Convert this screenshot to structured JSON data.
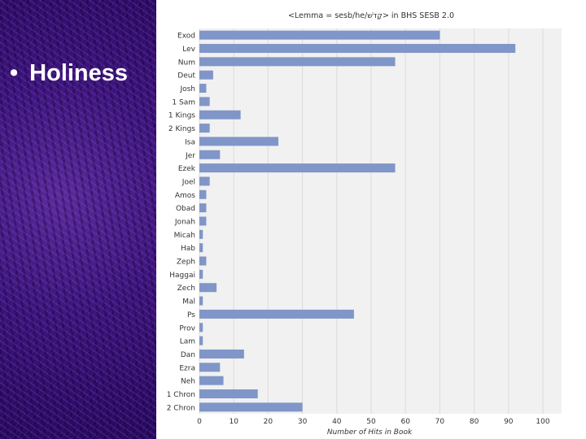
{
  "slide": {
    "bullet": "•",
    "heading": "Holiness"
  },
  "colors": {
    "bar": "#8096c8",
    "plot_bg": "#f1f1f1",
    "grid": "#dcdcdc",
    "left_panel": "#3b147a"
  },
  "chart_data": {
    "type": "bar",
    "orientation": "horizontal",
    "title": "<Lemma = sesb/he/קָדֹשׁ> in BHS SESB 2.0",
    "xlabel": "Number of Hits in Book",
    "ylabel": "",
    "xlim": [
      0,
      100
    ],
    "xticks": [
      0,
      10,
      20,
      30,
      40,
      50,
      60,
      70,
      80,
      90,
      100
    ],
    "grid": true,
    "categories": [
      "Exod",
      "Lev",
      "Num",
      "Deut",
      "Josh",
      "1 Sam",
      "1 Kings",
      "2 Kings",
      "Isa",
      "Jer",
      "Ezek",
      "Joel",
      "Amos",
      "Obad",
      "Jonah",
      "Micah",
      "Hab",
      "Zeph",
      "Haggai",
      "Zech",
      "Mal",
      "Ps",
      "Prov",
      "Lam",
      "Dan",
      "Ezra",
      "Neh",
      "1 Chron",
      "2 Chron"
    ],
    "values": [
      70,
      92,
      57,
      4,
      2,
      3,
      12,
      3,
      23,
      6,
      57,
      3,
      2,
      2,
      2,
      1,
      1,
      2,
      1,
      5,
      1,
      45,
      1,
      1,
      13,
      6,
      7,
      17,
      30
    ]
  }
}
